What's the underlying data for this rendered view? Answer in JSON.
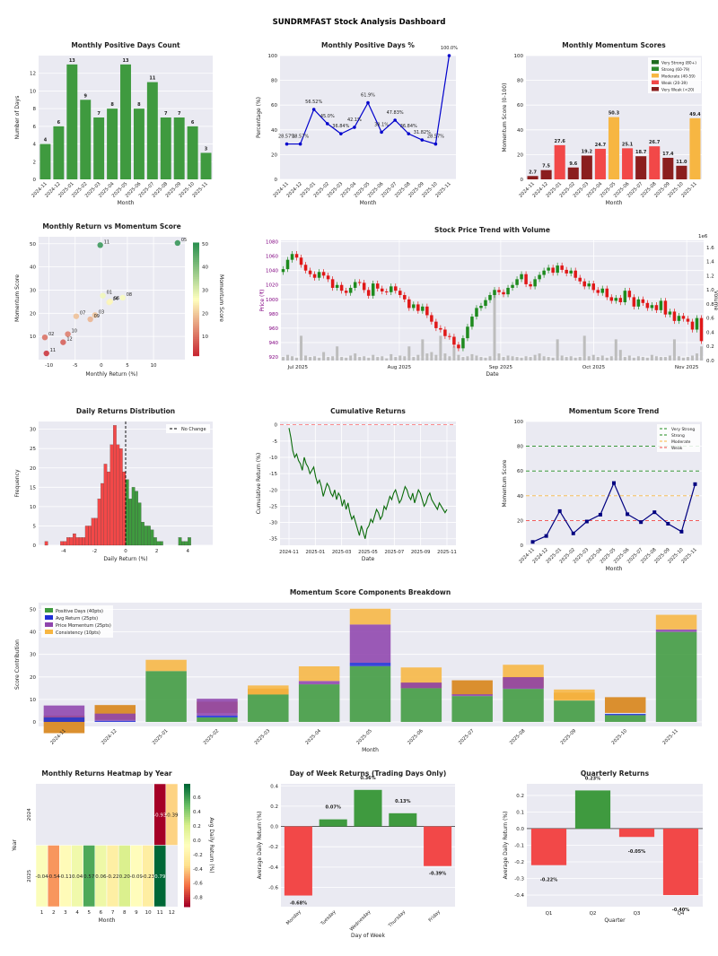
{
  "dashboard": {
    "title": "SUNDRMFAST Stock Analysis Dashboard"
  },
  "colors": {
    "green": "#3f9a3f",
    "red": "#f24848",
    "orange": "#f7b642",
    "darkred": "#8b1e1e",
    "darkgreen": "#1f6b1f",
    "blue": "#0000cc",
    "purple": "#8e44ad",
    "navy": "#000080",
    "panel": "#eaeaf2",
    "grey": "#bdbdbd"
  },
  "chart_data": [
    {
      "id": "pos_days",
      "type": "bar",
      "title": "Monthly Positive Days Count",
      "xlabel": "Month",
      "ylabel": "Number of Days",
      "ylim": [
        0,
        14
      ],
      "yticks": [
        "0",
        "2",
        "4",
        "6",
        "8",
        "10",
        "12"
      ],
      "categories": [
        "2024-11",
        "2024-12",
        "2025-01",
        "2025-02",
        "2025-03",
        "2025-04",
        "2025-05",
        "2025-06",
        "2025-07",
        "2025-08",
        "2025-09",
        "2025-10",
        "2025-11"
      ],
      "values": [
        4,
        6,
        13,
        9,
        7,
        8,
        13,
        8,
        11,
        7,
        7,
        6,
        3
      ],
      "labels": [
        "4",
        "6",
        "13",
        "9",
        "7",
        "8",
        "13",
        "8",
        "11",
        "7",
        "7",
        "6",
        "3"
      ]
    },
    {
      "id": "pos_pct",
      "type": "line",
      "title": "Monthly Positive Days %",
      "xlabel": "Month",
      "ylabel": "Percentage (%)",
      "ylim": [
        0,
        100
      ],
      "yticks": [
        "0",
        "20",
        "40",
        "60",
        "80",
        "100"
      ],
      "categories": [
        "2024-11",
        "2024-12",
        "2025-01",
        "2025-02",
        "2025-03",
        "2025-04",
        "2025-05",
        "2025-06",
        "2025-07",
        "2025-08",
        "2025-09",
        "2025-10",
        "2025-11"
      ],
      "values": [
        28.57,
        28.57,
        56.52,
        45.0,
        36.84,
        42.11,
        61.9,
        38.1,
        47.83,
        36.84,
        31.82,
        28.57,
        100.0
      ],
      "labels": [
        "28.57%",
        "28.57%",
        "56.52%",
        "45.0%",
        "36.84%",
        "42.1%",
        "61.9%",
        "38.1%",
        "47.83%",
        "36.84%",
        "31.82%",
        "28.57%",
        "100.0%"
      ]
    },
    {
      "id": "mom_scores",
      "type": "bar",
      "title": "Monthly Momentum Scores",
      "xlabel": "Month",
      "ylabel": "Momentum Score (0-100)",
      "ylim": [
        0,
        100
      ],
      "yticks": [
        "0",
        "20",
        "40",
        "60",
        "80",
        "100"
      ],
      "categories": [
        "2024-11",
        "2024-12",
        "2025-01",
        "2025-02",
        "2025-03",
        "2025-04",
        "2025-05",
        "2025-06",
        "2025-07",
        "2025-08",
        "2025-09",
        "2025-10",
        "2025-11"
      ],
      "values": [
        2.7,
        7.5,
        27.6,
        9.6,
        19.2,
        24.7,
        50.3,
        25.1,
        18.7,
        26.7,
        17.4,
        11.0,
        49.4
      ],
      "labels": [
        "2.7",
        "7.5",
        "27.6",
        "9.6",
        "19.2",
        "24.7",
        "50.3",
        "25.1",
        "18.7",
        "26.7",
        "17.4",
        "11.0",
        "49.4"
      ],
      "legend": [
        "Very Strong (80+)",
        "Strong (60-79)",
        "Moderate (40-59)",
        "Weak (20-39)",
        "Very Weak (<20)"
      ]
    },
    {
      "id": "ret_vs_mom",
      "type": "scatter",
      "title": "Monthly Return vs Momentum Score",
      "xlabel": "Monthly Return (%)",
      "ylabel": "Momentum Score",
      "xlim": [
        -12,
        16
      ],
      "ylim": [
        0,
        53
      ],
      "xticks": [
        "-10",
        "-5",
        "0",
        "5",
        "10"
      ],
      "yticks": [
        "10",
        "20",
        "30",
        "40",
        "50"
      ],
      "colorbar_label": "Momentum Score",
      "colorbar_ticks": [
        "10",
        "20",
        "30",
        "40",
        "50"
      ],
      "points": [
        {
          "label": "11",
          "x": -10.5,
          "y": 2.7
        },
        {
          "label": "12",
          "x": -7.3,
          "y": 7.5
        },
        {
          "label": "01",
          "x": 0.3,
          "y": 27.6
        },
        {
          "label": "02",
          "x": -10.8,
          "y": 9.6
        },
        {
          "label": "03",
          "x": -1.2,
          "y": 19.2
        },
        {
          "label": "04",
          "x": 1.5,
          "y": 24.7
        },
        {
          "label": "05",
          "x": 14.6,
          "y": 50.3
        },
        {
          "label": "06",
          "x": 1.7,
          "y": 25.1
        },
        {
          "label": "07",
          "x": -4.8,
          "y": 18.7
        },
        {
          "label": "08",
          "x": 4.1,
          "y": 26.7
        },
        {
          "label": "09",
          "x": -2.1,
          "y": 17.4
        },
        {
          "label": "10",
          "x": -6.4,
          "y": 11.0
        },
        {
          "label": "11",
          "x": -0.2,
          "y": 49.4
        }
      ]
    },
    {
      "id": "price_trend",
      "type": "candlestick",
      "title": "Stock Price Trend with Volume",
      "xlabel": "Date",
      "ylabel": "Price (₹)",
      "ylabel2": "Volume",
      "ylim": [
        915,
        1082
      ],
      "yticks": [
        "920",
        "940",
        "960",
        "980",
        "1000",
        "1020",
        "1040",
        "1060",
        "1080"
      ],
      "y2ticks": [
        "0.0",
        "0.2",
        "0.4",
        "0.6",
        "0.8",
        "1.0",
        "1.2",
        "1.4",
        "1.6"
      ],
      "y2_multiplier": "1e6",
      "xticks": [
        "Jul 2025",
        "Aug 2025",
        "Sep 2025",
        "Oct 2025",
        "Nov 2025"
      ],
      "close": [
        1042,
        1055,
        1063,
        1058,
        1048,
        1040,
        1035,
        1030,
        1038,
        1033,
        1028,
        1016,
        1020,
        1012,
        1009,
        1016,
        1024,
        1023,
        1013,
        1005,
        1022,
        1015,
        1011,
        1010,
        1018,
        1012,
        1006,
        1000,
        988,
        993,
        984,
        990,
        978,
        969,
        960,
        958,
        949,
        948,
        937,
        932,
        946,
        962,
        976,
        988,
        991,
        999,
        1006,
        1013,
        1010,
        1007,
        1016,
        1020,
        1028,
        1035,
        1021,
        1018,
        1028,
        1034,
        1040,
        1044,
        1037,
        1047,
        1041,
        1036,
        1040,
        1030,
        1025,
        1018,
        1022,
        1013,
        1009,
        1015,
        1003,
        998,
        1002,
        996,
        1012,
        1003,
        990,
        1000,
        995,
        988,
        992,
        985,
        998,
        979,
        983,
        970,
        977,
        973,
        969,
        958,
        974,
        942
      ],
      "volume": [
        0.05,
        0.08,
        0.06,
        0.04,
        0.35,
        0.07,
        0.05,
        0.06,
        0.04,
        0.12,
        0.05,
        0.06,
        0.2,
        0.05,
        0.04,
        0.07,
        0.1,
        0.05,
        0.06,
        0.04,
        0.08,
        0.05,
        0.06,
        0.03,
        0.09,
        0.05,
        0.07,
        0.06,
        0.2,
        0.05,
        0.08,
        0.3,
        0.1,
        0.12,
        0.08,
        0.35,
        0.1,
        0.06,
        0.2,
        0.08,
        0.05,
        0.06,
        0.09,
        0.07,
        0.05,
        0.04,
        0.06,
        1.0,
        0.1,
        0.05,
        0.07,
        0.06,
        0.05,
        0.04,
        0.06,
        0.05,
        0.08,
        0.1,
        0.06,
        0.05,
        0.04,
        0.3,
        0.07,
        0.05,
        0.06,
        0.04,
        0.05,
        0.35,
        0.06,
        0.08,
        0.05,
        0.07,
        0.04,
        0.06,
        0.3,
        0.15,
        0.05,
        0.07,
        0.04,
        0.06,
        0.05,
        0.04,
        0.08,
        0.06,
        0.05,
        0.05,
        0.07,
        0.3,
        0.06,
        0.04,
        0.05,
        0.07,
        0.1,
        0.2
      ]
    },
    {
      "id": "ret_dist",
      "type": "histogram",
      "title": "Daily Returns Distribution",
      "xlabel": "Daily Return (%)",
      "ylabel": "Frequency",
      "xlim": [
        -5.6,
        5.6
      ],
      "ylim": [
        0,
        32
      ],
      "xticks": [
        "-4",
        "-2",
        "0",
        "2",
        "4"
      ],
      "yticks": [
        "0",
        "5",
        "10",
        "15",
        "20",
        "25",
        "30"
      ],
      "bin_start": -5.2,
      "bin_width": 0.2,
      "counts": [
        1,
        0,
        0,
        0,
        0,
        1,
        1,
        2,
        2,
        3,
        2,
        2,
        2,
        5,
        5,
        7,
        7,
        12,
        16,
        21,
        19,
        26,
        31,
        26,
        25,
        19,
        17,
        12,
        15,
        14,
        11,
        6,
        5,
        5,
        4,
        2,
        1,
        1,
        0,
        0,
        0,
        0,
        0,
        2,
        1,
        1,
        2
      ],
      "vline_label": "No Change"
    },
    {
      "id": "cum_ret",
      "type": "line",
      "title": "Cumulative Returns",
      "xlabel": "Date",
      "ylabel": "Cumulative Return (%)",
      "ylim": [
        -37,
        1
      ],
      "yticks": [
        "-35",
        "-30",
        "-25",
        "-20",
        "-15",
        "-10",
        "-5",
        "0"
      ],
      "xticks": [
        "2024-11",
        "2025-01",
        "2025-03",
        "2025-05",
        "2025-07",
        "2025-09",
        "2025-11"
      ],
      "values": [
        -1,
        -4,
        -8,
        -10,
        -9,
        -11,
        -12,
        -14,
        -10,
        -12,
        -13,
        -15,
        -14,
        -13,
        -16,
        -18,
        -17,
        -19,
        -22,
        -20,
        -18,
        -19,
        -21,
        -22,
        -20,
        -23,
        -21,
        -22,
        -25,
        -23,
        -26,
        -24,
        -27,
        -29,
        -28,
        -30,
        -32,
        -34,
        -31,
        -33,
        -35,
        -32,
        -31,
        -29,
        -30,
        -28,
        -26,
        -27,
        -29,
        -28,
        -25,
        -26,
        -24,
        -22,
        -23,
        -21,
        -20,
        -22,
        -24,
        -23,
        -21,
        -19,
        -20,
        -22,
        -23,
        -21,
        -24,
        -22,
        -20,
        -21,
        -23,
        -25,
        -24,
        -22,
        -21,
        -23,
        -24,
        -25,
        -26,
        -24,
        -25,
        -26,
        -27,
        -26
      ]
    },
    {
      "id": "mom_trend",
      "type": "line",
      "title": "Momentum Score Trend",
      "xlabel": "Month",
      "ylabel": "Momentum Score",
      "ylim": [
        0,
        100
      ],
      "yticks": [
        "0",
        "20",
        "40",
        "60",
        "80",
        "100"
      ],
      "categories": [
        "2024-11",
        "2024-12",
        "2025-01",
        "2025-02",
        "2025-03",
        "2025-04",
        "2025-05",
        "2025-06",
        "2025-07",
        "2025-08",
        "2025-09",
        "2025-10",
        "2025-11"
      ],
      "values": [
        2.7,
        7.5,
        27.6,
        9.6,
        19.2,
        24.7,
        50.3,
        25.1,
        18.7,
        26.7,
        17.4,
        11.0,
        49.4
      ],
      "thresholds": [
        80,
        60,
        40,
        20
      ],
      "legend": [
        "Very Strong",
        "Strong",
        "Moderate",
        "Weak"
      ]
    },
    {
      "id": "components",
      "type": "stacked-bar",
      "title": "Momentum Score Components Breakdown",
      "xlabel": "Month",
      "ylabel": "Score Contribution",
      "ylim": [
        -2,
        53
      ],
      "yticks": [
        "0",
        "10",
        "20",
        "30",
        "40",
        "50"
      ],
      "categories": [
        "2024-11",
        "2024-12",
        "2025-01",
        "2025-02",
        "2025-03",
        "2025-04",
        "2025-05",
        "2025-06",
        "2025-07",
        "2025-08",
        "2025-09",
        "2025-10",
        "2025-11"
      ],
      "series": [
        {
          "name": "Positive Days (40pts)",
          "values": [
            0,
            0,
            22.6,
            2.0,
            12.2,
            16.7,
            24.8,
            15.0,
            11.5,
            14.7,
            9.5,
            3.0,
            40.0
          ]
        },
        {
          "name": "Avg Return (25pts)",
          "values": [
            2.0,
            0.5,
            0,
            0.8,
            0,
            0,
            1.5,
            0,
            0,
            0,
            0,
            0.6,
            0
          ]
        },
        {
          "name": "Price Momentum (25pts)",
          "values": [
            5.3,
            3.2,
            0,
            7.5,
            0,
            1.5,
            17.0,
            2.5,
            0.8,
            5.2,
            0,
            0,
            1.1
          ]
        },
        {
          "name": "Consistency (10pts)",
          "values": [
            0,
            0,
            5.0,
            0,
            4.0,
            6.5,
            7.0,
            6.7,
            0,
            5.5,
            4.9,
            0,
            6.5
          ]
        }
      ],
      "lower_orange": [
        {
          "i": 0,
          "from": -5,
          "to": 2.8
        },
        {
          "i": 1,
          "from": 1,
          "to": 7.5
        },
        {
          "i": 3,
          "from": 4,
          "to": 9.0
        },
        {
          "i": 4,
          "from": 12.2,
          "to": 14.8
        },
        {
          "i": 7,
          "from": 15.0,
          "to": 17.5
        },
        {
          "i": 8,
          "from": 12.0,
          "to": 18.5
        },
        {
          "i": 9,
          "from": 15.0,
          "to": 20.0
        },
        {
          "i": 10,
          "from": 10,
          "to": 13
        },
        {
          "i": 11,
          "from": 4,
          "to": 11
        }
      ]
    },
    {
      "id": "heatmap",
      "type": "heatmap",
      "title": "Monthly Returns Heatmap by Year",
      "xlabel": "Month",
      "ylabel": "Year",
      "rows": [
        "2024",
        "2025"
      ],
      "columns": [
        "1",
        "2",
        "3",
        "4",
        "5",
        "6",
        "7",
        "8",
        "9",
        "10",
        "11",
        "12"
      ],
      "colorbar_label": "Avg Daily Return (%)",
      "colorbar_ticks": [
        "0.6",
        "0.4",
        "0.2",
        "0.0",
        "-0.2",
        "-0.4",
        "-0.6",
        "-0.8"
      ],
      "values": [
        [
          null,
          null,
          null,
          null,
          null,
          null,
          null,
          null,
          null,
          null,
          -0.93,
          -0.39
        ],
        [
          -0.04,
          -0.54,
          -0.11,
          0.04,
          0.57,
          0.06,
          -0.22,
          0.2,
          -0.09,
          -0.23,
          0.79,
          null
        ]
      ],
      "labels": [
        [
          "",
          "",
          "",
          "",
          "",
          "",
          "",
          "",
          "",
          "",
          "-0.93",
          "-0.39"
        ],
        [
          "-0.04",
          "-0.54",
          "-0.11",
          "0.04",
          "0.57",
          "0.06",
          "-0.22",
          "0.20",
          "-0.09",
          "-0.23",
          "0.79",
          ""
        ]
      ]
    },
    {
      "id": "dow",
      "type": "bar",
      "title": "Day of Week Returns (Trading Days Only)",
      "xlabel": "Day of Week",
      "ylabel": "Average Daily Return (%)",
      "ylim": [
        -0.79,
        0.42
      ],
      "yticks": [
        "-0.6",
        "-0.4",
        "-0.2",
        "0.0",
        "0.2",
        "0.4"
      ],
      "categories": [
        "Monday",
        "Tuesday",
        "Wednesday",
        "Thursday",
        "Friday"
      ],
      "values": [
        -0.68,
        0.07,
        0.36,
        0.13,
        -0.39
      ],
      "labels": [
        "-0.68%",
        "0.07%",
        "0.36%",
        "0.13%",
        "-0.39%"
      ]
    },
    {
      "id": "quarterly",
      "type": "bar",
      "title": "Quarterly Returns",
      "xlabel": "Quarter",
      "ylabel": "Average Daily Return (%)",
      "ylim": [
        -0.47,
        0.27
      ],
      "yticks": [
        "-0.4",
        "-0.3",
        "-0.2",
        "-0.1",
        "0.0",
        "0.1",
        "0.2"
      ],
      "categories": [
        "Q1",
        "Q2",
        "Q3",
        "Q4"
      ],
      "values": [
        -0.22,
        0.23,
        -0.05,
        -0.4
      ],
      "labels": [
        "-0.22%",
        "0.23%",
        "-0.05%",
        "-0.40%"
      ]
    }
  ]
}
